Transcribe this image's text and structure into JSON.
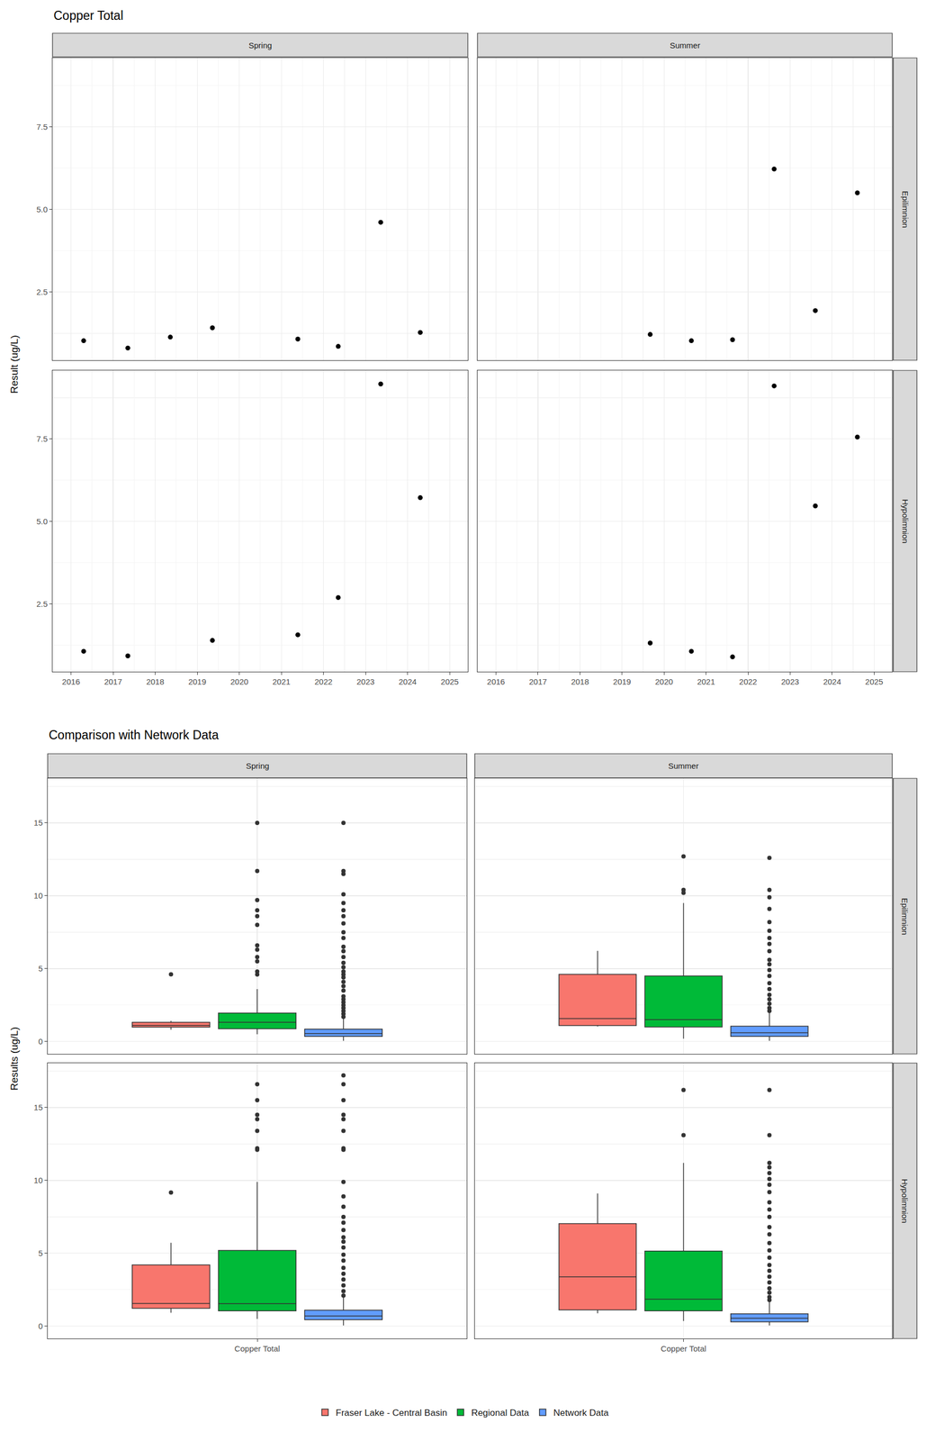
{
  "chart_data": [
    {
      "type": "scatter",
      "title": "Copper Total",
      "y_label": "Result (ug/L)",
      "columns": [
        "Spring",
        "Summer"
      ],
      "rows": [
        "Epilimnion",
        "Hypolimnion"
      ],
      "xlim": [
        2015.56,
        2025.43
      ],
      "xticks": [
        2016,
        2017,
        2018,
        2019,
        2020,
        2021,
        2022,
        2023,
        2024,
        2025
      ],
      "ylim": [
        0.44,
        9.58
      ],
      "yticks": [
        2.5,
        {
          "value": 5,
          "label": "5.0"
        },
        7.5
      ],
      "grid": true,
      "color": "#000000",
      "marker": "circle",
      "panels": [
        {
          "column": "Spring",
          "row": "Epilimnion",
          "x": [
            2016.3,
            2017.35,
            2018.36,
            2019.36,
            2021.39,
            2022.35,
            2023.36,
            2024.3
          ],
          "values": [
            1.03,
            0.81,
            1.14,
            1.42,
            1.08,
            0.86,
            4.61,
            1.28
          ]
        },
        {
          "column": "Summer",
          "row": "Epilimnion",
          "x": [
            2019.67,
            2020.65,
            2021.63,
            2022.62,
            2023.6,
            2024.6
          ],
          "values": [
            1.22,
            1.03,
            1.06,
            6.22,
            1.94,
            5.5
          ]
        },
        {
          "column": "Spring",
          "row": "Hypolimnion",
          "x": [
            2016.3,
            2017.35,
            2019.36,
            2021.39,
            2022.35,
            2023.36,
            2024.3
          ],
          "values": [
            1.06,
            0.92,
            1.39,
            1.56,
            2.69,
            9.17,
            5.72
          ]
        },
        {
          "column": "Summer",
          "row": "Hypolimnion",
          "x": [
            2019.67,
            2020.65,
            2021.63,
            2022.62,
            2023.6,
            2024.6
          ],
          "values": [
            1.31,
            1.06,
            0.89,
            9.11,
            5.47,
            7.56
          ]
        }
      ]
    },
    {
      "type": "box",
      "title": "Comparison with Network Data",
      "y_label": "Results (ug/L)",
      "category": "Copper Total",
      "columns": [
        "Spring",
        "Summer"
      ],
      "rows": [
        "Epilimnion",
        "Hypolimnion"
      ],
      "ylim": [
        -0.85,
        18.05
      ],
      "yticks": [
        0,
        5,
        10,
        15
      ],
      "grid": true,
      "legend": "bottom",
      "series": [
        {
          "name": "Fraser Lake - Central Basin",
          "color": "#F8766D"
        },
        {
          "name": "Regional Data",
          "color": "#00BA38"
        },
        {
          "name": "Network Data",
          "color": "#619CFF"
        }
      ],
      "panels": [
        {
          "column": "Spring",
          "row": "Epilimnion",
          "boxes": [
            {
              "lowerfence": 0.81,
              "q1": 0.99,
              "median": 1.11,
              "q3": 1.32,
              "upperfence": 1.42,
              "outliers": [
                4.61
              ]
            },
            {
              "lowerfence": 0.5,
              "q1": 0.88,
              "median": 1.32,
              "q3": 1.95,
              "upperfence": 3.6,
              "outliers": [
                4.6,
                4.8,
                5.5,
                5.8,
                6.3,
                6.6,
                8.0,
                8.6,
                9.0,
                9.7,
                11.7,
                15.0
              ]
            },
            {
              "lowerfence": 0.05,
              "q1": 0.35,
              "median": 0.55,
              "q3": 0.85,
              "upperfence": 1.6,
              "outliers": [
                1.7,
                1.9,
                2.1,
                2.3,
                2.5,
                2.7,
                2.9,
                3.1,
                3.5,
                3.8,
                4.1,
                4.4,
                4.6,
                4.8,
                5.1,
                5.4,
                5.8,
                6.2,
                6.5,
                7.1,
                7.5,
                8.1,
                8.6,
                9.0,
                9.5,
                10.1,
                11.5,
                11.7,
                15.0
              ]
            }
          ]
        },
        {
          "column": "Summer",
          "row": "Epilimnion",
          "boxes": [
            {
              "lowerfence": 1.03,
              "q1": 1.1,
              "median": 1.58,
              "q3": 4.61,
              "upperfence": 6.22,
              "outliers": []
            },
            {
              "lowerfence": 0.2,
              "q1": 1.0,
              "median": 1.5,
              "q3": 4.5,
              "upperfence": 9.5,
              "outliers": [
                10.2,
                10.4,
                12.7
              ]
            },
            {
              "lowerfence": 0.05,
              "q1": 0.35,
              "median": 0.6,
              "q3": 1.05,
              "upperfence": 2.0,
              "outliers": [
                2.1,
                2.3,
                2.6,
                2.9,
                3.2,
                3.6,
                4.0,
                4.5,
                4.9,
                5.3,
                5.6,
                6.2,
                6.7,
                7.1,
                7.6,
                8.2,
                9.1,
                9.9,
                10.4,
                12.6
              ]
            }
          ]
        },
        {
          "column": "Spring",
          "row": "Hypolimnion",
          "boxes": [
            {
              "lowerfence": 0.92,
              "q1": 1.23,
              "median": 1.56,
              "q3": 4.21,
              "upperfence": 5.72,
              "outliers": [
                9.17
              ]
            },
            {
              "lowerfence": 0.5,
              "q1": 1.05,
              "median": 1.55,
              "q3": 5.2,
              "upperfence": 9.9,
              "outliers": [
                12.1,
                12.2,
                13.4,
                14.2,
                14.5,
                15.5,
                16.6
              ]
            },
            {
              "lowerfence": 0.05,
              "q1": 0.45,
              "median": 0.7,
              "q3": 1.1,
              "upperfence": 2.0,
              "outliers": [
                2.1,
                2.4,
                2.8,
                3.2,
                3.6,
                4.0,
                4.5,
                4.9,
                5.4,
                5.8,
                6.1,
                6.6,
                7.1,
                7.5,
                8.2,
                8.9,
                9.9,
                12.1,
                12.2,
                13.4,
                14.2,
                14.5,
                15.5,
                16.6,
                17.2
              ]
            }
          ]
        },
        {
          "column": "Summer",
          "row": "Hypolimnion",
          "boxes": [
            {
              "lowerfence": 0.89,
              "q1": 1.12,
              "median": 3.39,
              "q3": 7.04,
              "upperfence": 9.11,
              "outliers": []
            },
            {
              "lowerfence": 0.35,
              "q1": 1.05,
              "median": 1.85,
              "q3": 5.15,
              "upperfence": 11.2,
              "outliers": [
                13.1,
                16.2
              ]
            },
            {
              "lowerfence": 0.05,
              "q1": 0.3,
              "median": 0.55,
              "q3": 0.85,
              "upperfence": 1.7,
              "outliers": [
                1.8,
                2.0,
                2.3,
                2.6,
                3.0,
                3.4,
                3.8,
                4.2,
                4.7,
                5.2,
                5.7,
                6.3,
                6.8,
                7.5,
                8.0,
                8.5,
                9.2,
                9.7,
                10.1,
                10.5,
                10.9,
                11.2,
                13.1,
                16.2
              ]
            }
          ]
        }
      ]
    }
  ]
}
